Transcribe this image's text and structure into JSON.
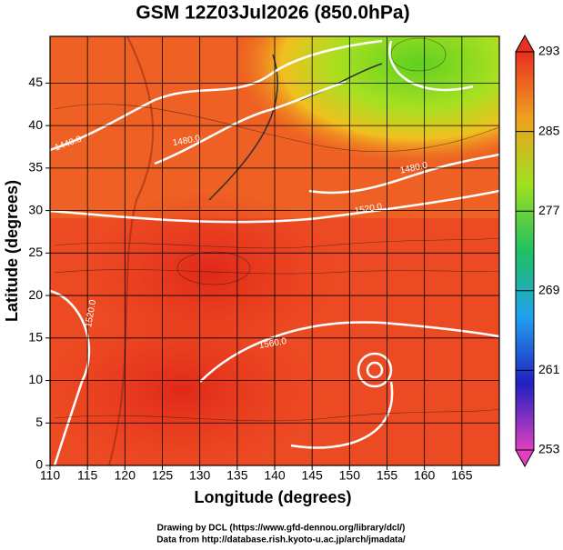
{
  "chart_data": {
    "type": "map",
    "title": "GSM 12Z03Jul2026 (850.0hPa)",
    "x_label": "Longitude (degrees)",
    "y_label": "Latitude  (degrees)",
    "xlim": [
      110,
      170
    ],
    "ylim": [
      0,
      50.5
    ],
    "xticks": [
      110,
      115,
      120,
      125,
      130,
      135,
      140,
      145,
      150,
      155,
      160,
      165
    ],
    "yticks": [
      0,
      5,
      10,
      15,
      20,
      25,
      30,
      35,
      40,
      45
    ],
    "grid": true,
    "colorbar": {
      "clim": [
        253,
        293
      ],
      "ticks": [
        253,
        261,
        269,
        277,
        285,
        293
      ],
      "colors": [
        "#e040c0",
        "#2020c0",
        "#20a0f0",
        "#20c060",
        "#a0e020",
        "#f0a020",
        "#e83020"
      ]
    },
    "contour_labels": [
      "1440.0",
      "1480.0",
      "1480.0",
      "1520.0",
      "1520.0",
      "1560.0"
    ],
    "footer": [
      "Drawing by DCL (https://www.gfd-dennou.org/library/dcl/)",
      "Data from http://database.rish.kyoto-u.ac.jp/arch/jmadata/"
    ]
  }
}
